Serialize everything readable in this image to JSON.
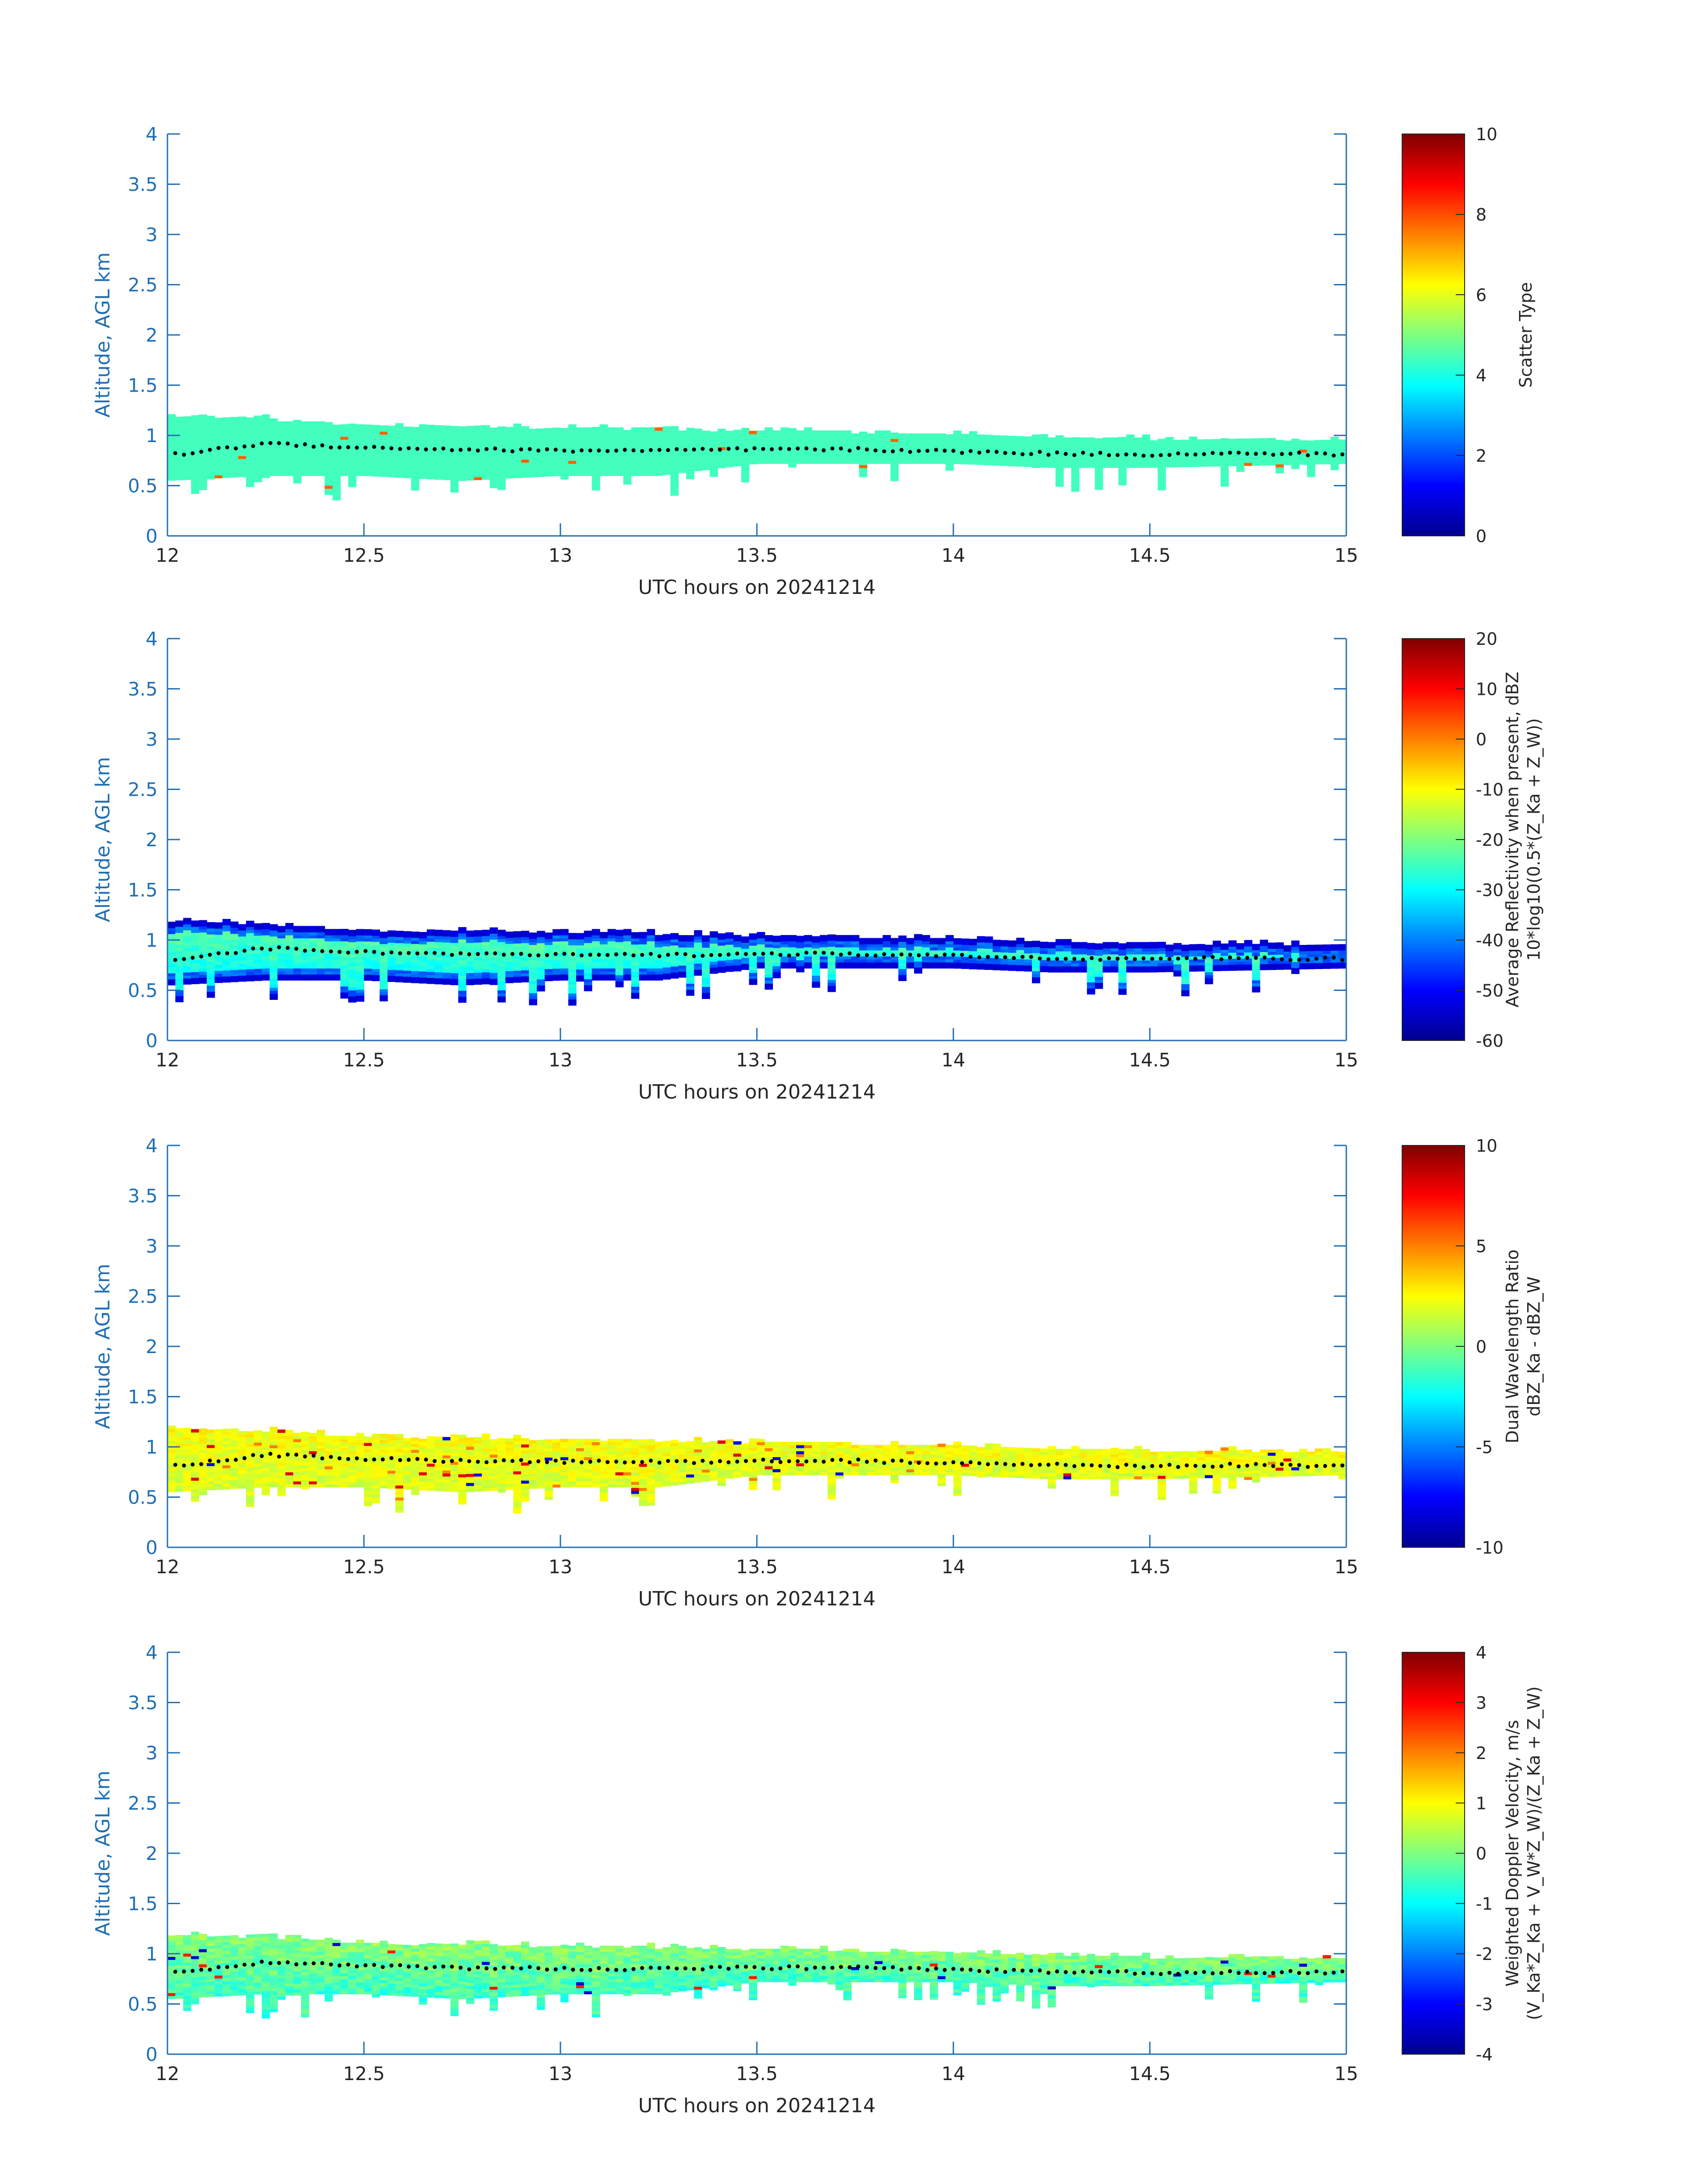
{
  "figure": {
    "xlabel": "UTC hours on 20241214",
    "ylabel": "Altitude, AGL km"
  },
  "chart_data": [
    {
      "type": "heatmap",
      "xlabel": "UTC hours on 20241214",
      "ylabel": "Altitude, AGL km",
      "xlim": [
        12,
        15
      ],
      "ylim": [
        0,
        4
      ],
      "xticks": [
        "12",
        "12.5",
        "13",
        "13.5",
        "14",
        "14.5",
        "15"
      ],
      "yticks": [
        "0",
        "0.5",
        "1",
        "1.5",
        "2",
        "2.5",
        "3",
        "3.5",
        "4"
      ],
      "colorbar": {
        "label_lines": [
          "Scatter Type"
        ],
        "range": [
          0,
          10
        ],
        "ticks": [
          "0",
          "2",
          "4",
          "6",
          "8",
          "10"
        ],
        "colormap": "jet"
      },
      "description_values": {
        "dominant_value": 3.5,
        "sparse_value": 8
      }
    },
    {
      "type": "heatmap",
      "xlabel": "UTC hours on 20241214",
      "ylabel": "Altitude, AGL km",
      "xlim": [
        12,
        15
      ],
      "ylim": [
        0,
        4
      ],
      "xticks": [
        "12",
        "12.5",
        "13",
        "13.5",
        "14",
        "14.5",
        "15"
      ],
      "yticks": [
        "0",
        "0.5",
        "1",
        "1.5",
        "2",
        "2.5",
        "3",
        "3.5",
        "4"
      ],
      "colorbar": {
        "label_lines": [
          "Average Reflectivity when present, dBZ",
          "10*log10(0.5*(Z_Ka + Z_W))"
        ],
        "range": [
          -60,
          20
        ],
        "ticks": [
          "-60",
          "-50",
          "-40",
          "-30",
          "-20",
          "-10",
          "0",
          "10",
          "20"
        ],
        "colormap": "jet"
      }
    },
    {
      "type": "heatmap",
      "xlabel": "UTC hours on 20241214",
      "ylabel": "Altitude, AGL km",
      "xlim": [
        12,
        15
      ],
      "ylim": [
        0,
        4
      ],
      "xticks": [
        "12",
        "12.5",
        "13",
        "13.5",
        "14",
        "14.5",
        "15"
      ],
      "yticks": [
        "0",
        "0.5",
        "1",
        "1.5",
        "2",
        "2.5",
        "3",
        "3.5",
        "4"
      ],
      "colorbar": {
        "label_lines": [
          "Dual Wavelength Ratio",
          "dBZ_Ka - dBZ_W"
        ],
        "range": [
          -10,
          10
        ],
        "ticks": [
          "-10",
          "-5",
          "0",
          "5",
          "10"
        ],
        "colormap": "jet"
      }
    },
    {
      "type": "heatmap",
      "xlabel": "UTC hours on 20241214",
      "ylabel": "Altitude, AGL km",
      "xlim": [
        12,
        15
      ],
      "ylim": [
        0,
        4
      ],
      "xticks": [
        "12",
        "12.5",
        "13",
        "13.5",
        "14",
        "14.5",
        "15"
      ],
      "yticks": [
        "0",
        "0.5",
        "1",
        "1.5",
        "2",
        "2.5",
        "3",
        "3.5",
        "4"
      ],
      "colorbar": {
        "label_lines": [
          "Weighted Doppler Velocity, m/s",
          "(V_Ka*Z_Ka + V_W*Z_W)/(Z_Ka + Z_W)"
        ],
        "range": [
          -4,
          4
        ],
        "ticks": [
          "-4",
          "-3",
          "-2",
          "-1",
          "0",
          "1",
          "2",
          "3",
          "4"
        ],
        "colormap": "jet"
      }
    }
  ],
  "cloud": {
    "times": [
      12.0,
      12.25,
      12.5,
      12.75,
      13.0,
      13.25,
      13.5,
      13.75,
      14.0,
      14.25,
      14.5,
      14.75,
      15.0
    ],
    "top_km": [
      1.18,
      1.15,
      1.08,
      1.08,
      1.06,
      1.05,
      1.03,
      1.02,
      1.0,
      0.98,
      0.95,
      0.95,
      0.94
    ],
    "base_km": [
      0.55,
      0.6,
      0.6,
      0.55,
      0.6,
      0.6,
      0.72,
      0.72,
      0.72,
      0.68,
      0.68,
      0.7,
      0.72
    ],
    "line_km": [
      0.8,
      0.92,
      0.88,
      0.86,
      0.85,
      0.85,
      0.86,
      0.86,
      0.84,
      0.82,
      0.81,
      0.82,
      0.81
    ]
  },
  "colors": {
    "axis": "#1f6fb3",
    "text": "#262626",
    "dot": "#000000"
  }
}
